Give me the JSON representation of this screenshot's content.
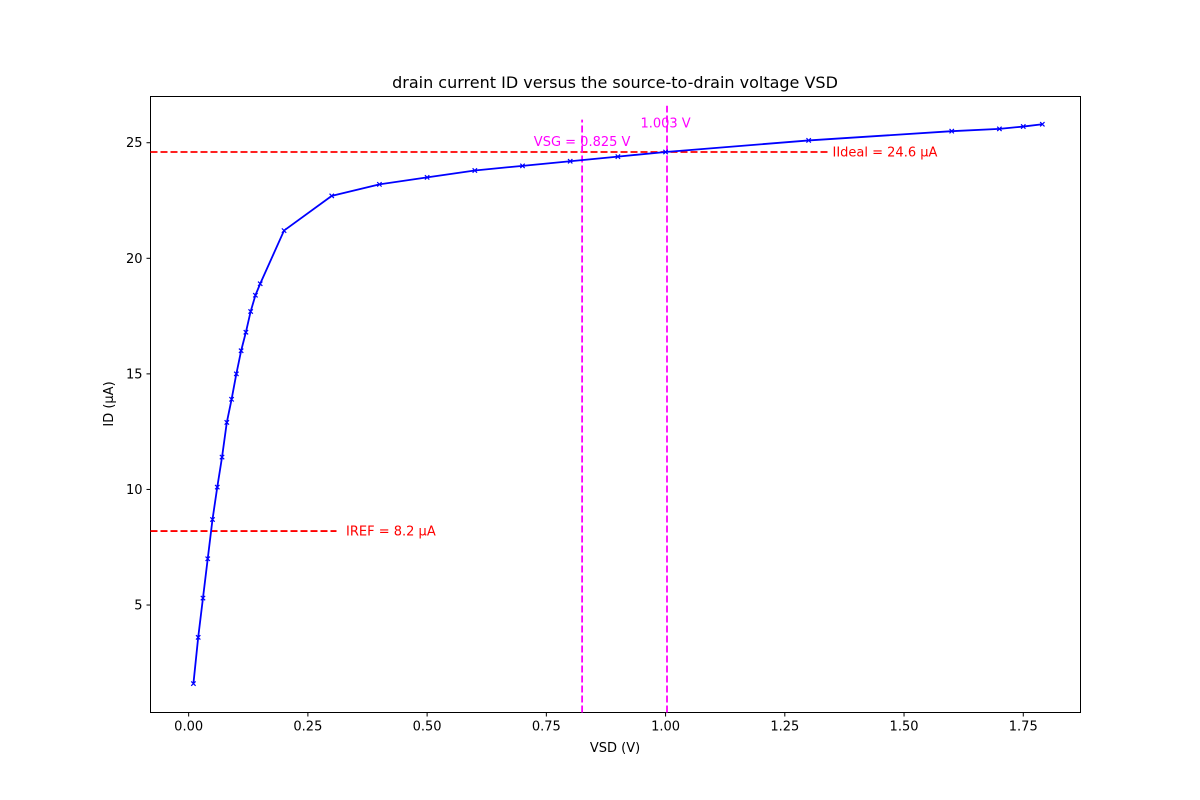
{
  "chart_data": {
    "type": "line",
    "title": "drain current ID versus the source-to-drain voltage VSD",
    "xlabel": "VSD (V)",
    "ylabel": "ID (μA)",
    "xlim": [
      -0.08,
      1.87
    ],
    "ylim": [
      0.35,
      27.0
    ],
    "xticks": [
      0.0,
      0.25,
      0.5,
      0.75,
      1.0,
      1.25,
      1.5,
      1.75
    ],
    "xtick_labels": [
      "0.00",
      "0.25",
      "0.50",
      "0.75",
      "1.00",
      "1.25",
      "1.50",
      "1.75"
    ],
    "yticks": [
      5,
      10,
      15,
      20,
      25
    ],
    "ytick_labels": [
      "5",
      "10",
      "15",
      "20",
      "25"
    ],
    "grid": false,
    "series": [
      {
        "color": "#0000ff",
        "marker": "x",
        "x": [
          0.01,
          0.02,
          0.03,
          0.04,
          0.05,
          0.06,
          0.07,
          0.08,
          0.09,
          0.1,
          0.11,
          0.12,
          0.13,
          0.14,
          0.15,
          0.2,
          0.3,
          0.4,
          0.5,
          0.6,
          0.7,
          0.8,
          0.9,
          1.0,
          1.3,
          1.6,
          1.7,
          1.75,
          1.79
        ],
        "y": [
          1.6,
          3.6,
          5.3,
          7.0,
          8.7,
          10.1,
          11.4,
          12.9,
          13.9,
          15.0,
          16.0,
          16.8,
          17.7,
          18.4,
          18.9,
          21.2,
          22.7,
          23.2,
          23.5,
          23.8,
          24.0,
          24.2,
          24.4,
          24.6,
          25.1,
          25.5,
          25.6,
          25.7,
          25.8
        ]
      }
    ],
    "reference_lines": [
      {
        "orientation": "horizontal",
        "value": 24.6,
        "x_start": -0.08,
        "x_end": 1.34,
        "color": "#ff0000",
        "style": "dashed"
      },
      {
        "orientation": "horizontal",
        "value": 8.2,
        "x_start": -0.08,
        "x_end": 0.31,
        "color": "#ff0000",
        "style": "dashed"
      },
      {
        "orientation": "vertical",
        "value": 0.825,
        "y_start": 0.35,
        "y_end": 26.0,
        "color": "#ff00ff",
        "style": "dashed"
      },
      {
        "orientation": "vertical",
        "value": 1.003,
        "y_start": 0.35,
        "y_end": 26.6,
        "color": "#ff00ff",
        "style": "dashed"
      }
    ],
    "annotations": [
      {
        "text": "IIdeal = 24.6 μA",
        "x": 1.35,
        "y": 24.6,
        "anchor": "start",
        "color": "#ff0000"
      },
      {
        "text": "IREF = 8.2 μA",
        "x": 0.33,
        "y": 8.2,
        "anchor": "start",
        "color": "#ff0000"
      },
      {
        "text": "VSG = 0.825 V",
        "x": 0.825,
        "y": 25.05,
        "anchor": "middle",
        "color": "#ff00ff"
      },
      {
        "text": "1.003 V",
        "x": 1.0,
        "y": 25.85,
        "anchor": "middle",
        "color": "#ff00ff"
      }
    ]
  }
}
